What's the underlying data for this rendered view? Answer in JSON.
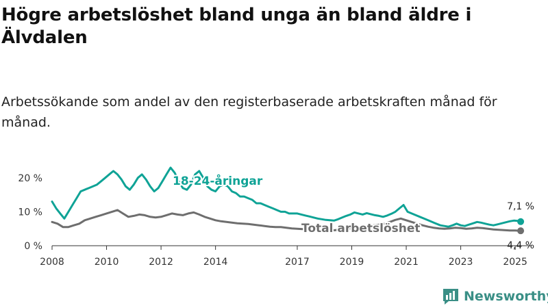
{
  "title": "Högre arbetslöshet bland unga än bland äldre i Älvdalen",
  "subtitle": "Arbetssökande som andel av den registerbaserade arbetskraften månad för månad.",
  "brand": {
    "name": "Newsworthy"
  },
  "colors": {
    "young": "#0fa396",
    "total": "#6e6e6e",
    "axis": "#333333",
    "grid": "#cccccc",
    "brand": "#3a8f86"
  },
  "chart_data": {
    "type": "line",
    "xlabel": "",
    "ylabel": "",
    "ylim": [
      0,
      25
    ],
    "xlim": [
      2008,
      2025.6
    ],
    "x_ticks": [
      2008,
      2010,
      2012,
      2014,
      2017,
      2019,
      2021,
      2023,
      2025
    ],
    "x_tick_labels": [
      "2008",
      "2010",
      "2012",
      "2014",
      "2017",
      "2019",
      "2021",
      "2023",
      "2025"
    ],
    "y_ticks": [
      0,
      10,
      20
    ],
    "y_tick_labels": [
      "0 %",
      "10 %",
      "20 %"
    ],
    "grid": false,
    "series": [
      {
        "name": "18-24-åringar",
        "color": "#0fa396",
        "end_label": "7,1 %",
        "points": [
          [
            2008.0,
            13
          ],
          [
            2008.15,
            11
          ],
          [
            2008.3,
            9.5
          ],
          [
            2008.45,
            8
          ],
          [
            2008.6,
            10
          ],
          [
            2008.75,
            12
          ],
          [
            2008.9,
            14
          ],
          [
            2009.05,
            16
          ],
          [
            2009.2,
            16.5
          ],
          [
            2009.35,
            17
          ],
          [
            2009.5,
            17.5
          ],
          [
            2009.65,
            18
          ],
          [
            2009.8,
            19
          ],
          [
            2009.95,
            20
          ],
          [
            2010.1,
            21
          ],
          [
            2010.25,
            22
          ],
          [
            2010.4,
            21
          ],
          [
            2010.55,
            19.5
          ],
          [
            2010.7,
            17.5
          ],
          [
            2010.85,
            16.5
          ],
          [
            2011.0,
            18
          ],
          [
            2011.15,
            20
          ],
          [
            2011.3,
            21
          ],
          [
            2011.45,
            19.5
          ],
          [
            2011.6,
            17.5
          ],
          [
            2011.75,
            16
          ],
          [
            2011.9,
            17
          ],
          [
            2012.05,
            19
          ],
          [
            2012.2,
            21
          ],
          [
            2012.35,
            23
          ],
          [
            2012.5,
            21.5
          ],
          [
            2012.65,
            19
          ],
          [
            2012.8,
            17
          ],
          [
            2012.95,
            16.5
          ],
          [
            2013.1,
            18
          ],
          [
            2013.25,
            21
          ],
          [
            2013.4,
            22
          ],
          [
            2013.55,
            20
          ],
          [
            2013.7,
            17.5
          ],
          [
            2013.85,
            16.5
          ],
          [
            2014.0,
            16
          ],
          [
            2014.15,
            17.5
          ],
          [
            2014.3,
            18
          ],
          [
            2014.45,
            17.5
          ],
          [
            2014.6,
            16
          ],
          [
            2014.75,
            15.5
          ],
          [
            2014.9,
            14.5
          ],
          [
            2015.05,
            14.5
          ],
          [
            2015.2,
            14
          ],
          [
            2015.35,
            13.5
          ],
          [
            2015.5,
            12.5
          ],
          [
            2015.65,
            12.5
          ],
          [
            2015.8,
            12
          ],
          [
            2015.95,
            11.5
          ],
          [
            2016.1,
            11
          ],
          [
            2016.25,
            10.5
          ],
          [
            2016.4,
            10
          ],
          [
            2016.55,
            10
          ],
          [
            2016.7,
            9.5
          ],
          [
            2016.85,
            9.5
          ],
          [
            2017.0,
            9.5
          ],
          [
            2017.15,
            9.2
          ],
          [
            2017.3,
            8.9
          ],
          [
            2017.45,
            8.6
          ],
          [
            2017.6,
            8.3
          ],
          [
            2017.75,
            8
          ],
          [
            2017.9,
            7.8
          ],
          [
            2018.05,
            7.6
          ],
          [
            2018.2,
            7.5
          ],
          [
            2018.35,
            7.4
          ],
          [
            2018.5,
            7.8
          ],
          [
            2018.65,
            8.3
          ],
          [
            2018.8,
            8.8
          ],
          [
            2018.95,
            9.2
          ],
          [
            2019.1,
            9.8
          ],
          [
            2019.25,
            9.5
          ],
          [
            2019.4,
            9.2
          ],
          [
            2019.55,
            9.6
          ],
          [
            2019.7,
            9.3
          ],
          [
            2019.85,
            9.0
          ],
          [
            2020.0,
            8.8
          ],
          [
            2020.15,
            8.5
          ],
          [
            2020.3,
            8.9
          ],
          [
            2020.45,
            9.4
          ],
          [
            2020.6,
            10.0
          ],
          [
            2020.75,
            11
          ],
          [
            2020.9,
            12
          ],
          [
            2021.05,
            10
          ],
          [
            2021.2,
            9.5
          ],
          [
            2021.35,
            9
          ],
          [
            2021.5,
            8.5
          ],
          [
            2021.65,
            8
          ],
          [
            2021.8,
            7.5
          ],
          [
            2021.95,
            7
          ],
          [
            2022.1,
            6.5
          ],
          [
            2022.25,
            6
          ],
          [
            2022.4,
            5.8
          ],
          [
            2022.55,
            5.6
          ],
          [
            2022.7,
            6
          ],
          [
            2022.85,
            6.5
          ],
          [
            2023.0,
            6
          ],
          [
            2023.15,
            5.8
          ],
          [
            2023.3,
            6.2
          ],
          [
            2023.45,
            6.6
          ],
          [
            2023.6,
            7
          ],
          [
            2023.75,
            6.8
          ],
          [
            2023.9,
            6.5
          ],
          [
            2024.05,
            6.2
          ],
          [
            2024.2,
            6
          ],
          [
            2024.35,
            6.3
          ],
          [
            2024.5,
            6.6
          ],
          [
            2024.65,
            6.9
          ],
          [
            2024.8,
            7.2
          ],
          [
            2024.95,
            7.4
          ],
          [
            2025.1,
            7.3
          ],
          [
            2025.2,
            7.1
          ]
        ]
      },
      {
        "name": "Total arbetslöshet",
        "color": "#6e6e6e",
        "end_label": "4,4 %",
        "points": [
          [
            2008.0,
            7
          ],
          [
            2008.2,
            6.5
          ],
          [
            2008.4,
            5.5
          ],
          [
            2008.6,
            5.5
          ],
          [
            2008.8,
            6
          ],
          [
            2009.0,
            6.5
          ],
          [
            2009.2,
            7.5
          ],
          [
            2009.4,
            8
          ],
          [
            2009.6,
            8.5
          ],
          [
            2009.8,
            9
          ],
          [
            2010.0,
            9.5
          ],
          [
            2010.2,
            10
          ],
          [
            2010.4,
            10.5
          ],
          [
            2010.6,
            9.5
          ],
          [
            2010.8,
            8.5
          ],
          [
            2011.0,
            8.8
          ],
          [
            2011.2,
            9.2
          ],
          [
            2011.4,
            9
          ],
          [
            2011.6,
            8.5
          ],
          [
            2011.8,
            8.3
          ],
          [
            2012.0,
            8.5
          ],
          [
            2012.2,
            9
          ],
          [
            2012.4,
            9.5
          ],
          [
            2012.6,
            9.2
          ],
          [
            2012.8,
            9
          ],
          [
            2013.0,
            9.5
          ],
          [
            2013.2,
            9.8
          ],
          [
            2013.4,
            9.2
          ],
          [
            2013.6,
            8.5
          ],
          [
            2013.8,
            8
          ],
          [
            2014.0,
            7.5
          ],
          [
            2014.2,
            7.2
          ],
          [
            2014.4,
            7
          ],
          [
            2014.6,
            6.8
          ],
          [
            2014.8,
            6.6
          ],
          [
            2015.0,
            6.5
          ],
          [
            2015.2,
            6.4
          ],
          [
            2015.4,
            6.2
          ],
          [
            2015.6,
            6.0
          ],
          [
            2015.8,
            5.8
          ],
          [
            2016.0,
            5.6
          ],
          [
            2016.2,
            5.5
          ],
          [
            2016.4,
            5.5
          ],
          [
            2016.6,
            5.3
          ],
          [
            2016.8,
            5.1
          ],
          [
            2017.0,
            5.0
          ],
          [
            2017.2,
            4.9
          ],
          [
            2017.4,
            5.0
          ],
          [
            2017.6,
            4.8
          ],
          [
            2017.8,
            4.7
          ],
          [
            2018.0,
            4.6
          ],
          [
            2018.2,
            4.5
          ],
          [
            2018.4,
            4.6
          ],
          [
            2018.6,
            4.8
          ],
          [
            2018.8,
            5.0
          ],
          [
            2019.0,
            5.2
          ],
          [
            2019.2,
            5.4
          ],
          [
            2019.4,
            5.6
          ],
          [
            2019.6,
            5.8
          ],
          [
            2019.8,
            6.0
          ],
          [
            2020.0,
            6.2
          ],
          [
            2020.2,
            6.5
          ],
          [
            2020.4,
            7
          ],
          [
            2020.6,
            7.6
          ],
          [
            2020.8,
            8
          ],
          [
            2021.0,
            7.5
          ],
          [
            2021.2,
            7
          ],
          [
            2021.4,
            6.5
          ],
          [
            2021.6,
            6
          ],
          [
            2021.8,
            5.6
          ],
          [
            2022.0,
            5.3
          ],
          [
            2022.2,
            5.1
          ],
          [
            2022.4,
            5.0
          ],
          [
            2022.6,
            5.1
          ],
          [
            2022.8,
            5.3
          ],
          [
            2023.0,
            5.2
          ],
          [
            2023.2,
            5.0
          ],
          [
            2023.4,
            5.1
          ],
          [
            2023.6,
            5.3
          ],
          [
            2023.8,
            5.2
          ],
          [
            2024.0,
            5.0
          ],
          [
            2024.2,
            4.8
          ],
          [
            2024.4,
            4.7
          ],
          [
            2024.6,
            4.6
          ],
          [
            2024.8,
            4.5
          ],
          [
            2025.0,
            4.5
          ],
          [
            2025.2,
            4.4
          ]
        ]
      }
    ]
  }
}
